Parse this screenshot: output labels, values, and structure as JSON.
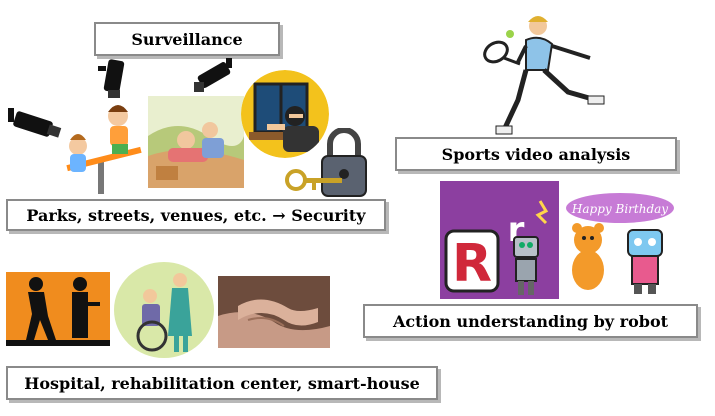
{
  "labels": {
    "surveillance": "Surveillance",
    "security": "Parks, streets, venues, etc. → Security",
    "sports": "Sports video analysis",
    "robot": "Action understanding by robot",
    "hospital": "Hospital, rehabilitation center, smart-house"
  },
  "clipart": {
    "birthday_text": "Happy Birthday",
    "robot_letter_big": "R",
    "robot_letter_small": "r"
  },
  "icons": [
    "cctv-camera-icon",
    "children-seesaw-icon",
    "picnic-scene-icon",
    "burglar-window-icon",
    "padlock-key-icon",
    "tennis-player-icon",
    "robot-letter-card-icon",
    "teddy-robot-birthday-icon",
    "walking-assist-icon",
    "wheelchair-nurse-icon",
    "holding-hands-photo-icon"
  ],
  "colors": {
    "label_border": "#8a8a8a",
    "label_shadow": "#b8b8b8",
    "purple_card": "#8c3fa0",
    "orange_panel": "#f08c1e"
  }
}
